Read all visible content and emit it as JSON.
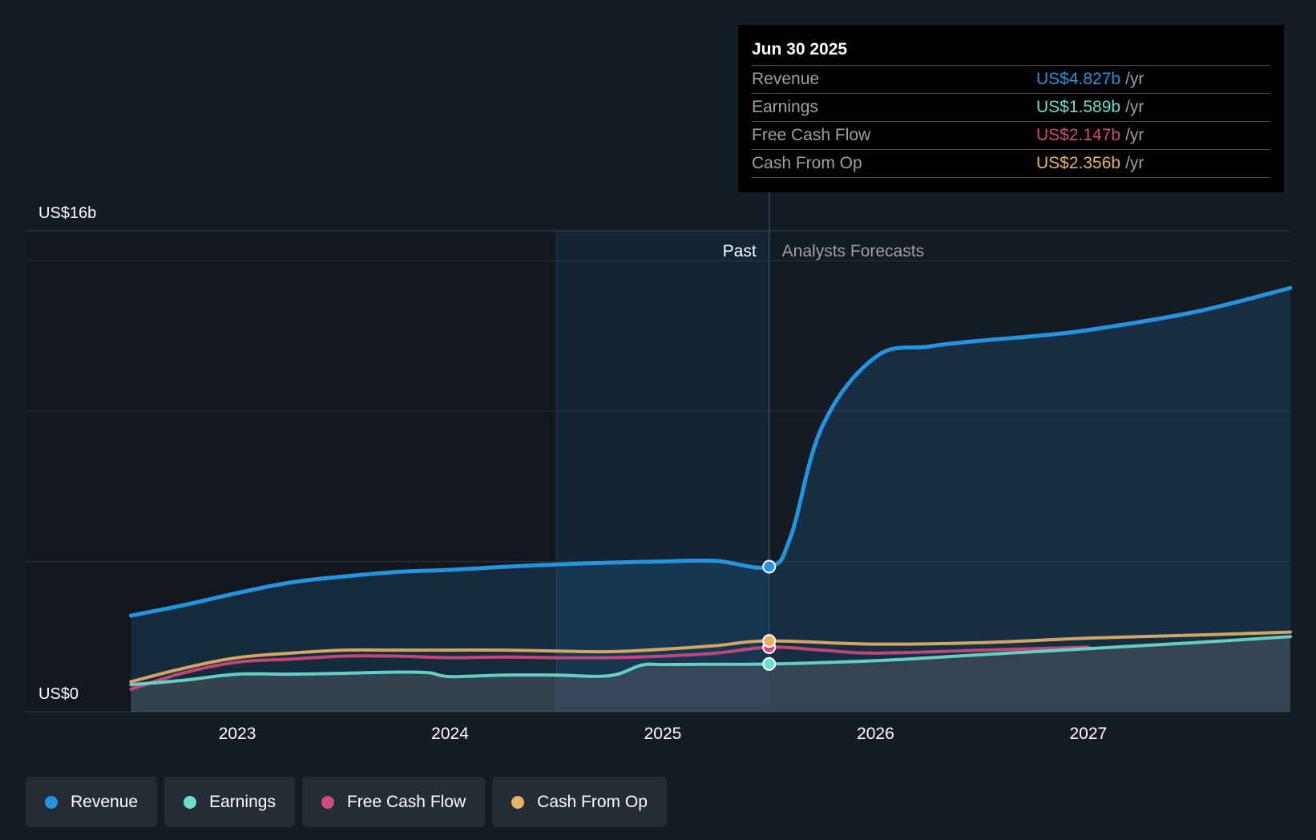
{
  "colors": {
    "background": "#151b24",
    "revenue": "#2394df",
    "earnings": "#6ae0cd",
    "free_cash_flow": "#d1497f",
    "cash_from_op": "#e8b266",
    "past_highlight": "#173248"
  },
  "tooltip": {
    "date": "Jun 30 2025",
    "rows": [
      {
        "label": "Revenue",
        "value": "US$4.827b",
        "unit": "/yr",
        "color": "#2394df"
      },
      {
        "label": "Earnings",
        "value": "US$1.589b",
        "unit": "/yr",
        "color": "#6ae0cd"
      },
      {
        "label": "Free Cash Flow",
        "value": "US$2.147b",
        "unit": "/yr",
        "color": "#d1497f"
      },
      {
        "label": "Cash From Op",
        "value": "US$2.356b",
        "unit": "/yr",
        "color": "#e8b266"
      }
    ]
  },
  "labels": {
    "past": "Past",
    "forecast": "Analysts Forecasts"
  },
  "legend": [
    {
      "label": "Revenue",
      "color": "#2394df"
    },
    {
      "label": "Earnings",
      "color": "#6ae0cd"
    },
    {
      "label": "Free Cash Flow",
      "color": "#d1497f"
    },
    {
      "label": "Cash From Op",
      "color": "#e8b266"
    }
  ],
  "chart_data": {
    "type": "line",
    "x_range": [
      2022.25,
      2027.95
    ],
    "ylim": [
      0,
      16
    ],
    "y_tick_labels": [
      {
        "value": 16,
        "label": "US$16b"
      },
      {
        "value": 0,
        "label": "US$0"
      }
    ],
    "x_ticks": [
      2023,
      2024,
      2025,
      2026,
      2027
    ],
    "x_tick_labels": [
      "2023",
      "2024",
      "2025",
      "2026",
      "2027"
    ],
    "gridlines_y": [
      15,
      10,
      5
    ],
    "grid": true,
    "legend_position": "bottom-left",
    "past_end": 2025.5,
    "highlight_start": 2024.5,
    "hover_x": 2025.5,
    "series": [
      {
        "name": "Revenue",
        "key": "revenue",
        "x": [
          2022.5,
          2022.75,
          2023.0,
          2023.25,
          2023.5,
          2023.75,
          2024.0,
          2024.25,
          2024.5,
          2024.75,
          2025.0,
          2025.25,
          2025.5,
          2025.6,
          2025.75,
          2026.0,
          2026.25,
          2026.5,
          2026.75,
          2027.0,
          2027.5,
          2027.95
        ],
        "y": [
          3.2,
          3.55,
          3.95,
          4.3,
          4.5,
          4.65,
          4.72,
          4.82,
          4.9,
          4.96,
          5.0,
          5.02,
          4.827,
          5.8,
          9.5,
          11.8,
          12.15,
          12.35,
          12.5,
          12.7,
          13.3,
          14.1
        ]
      },
      {
        "name": "Earnings",
        "key": "earnings",
        "x": [
          2022.5,
          2022.75,
          2023.0,
          2023.25,
          2023.5,
          2023.75,
          2023.9,
          2024.0,
          2024.25,
          2024.5,
          2024.75,
          2024.9,
          2025.0,
          2025.25,
          2025.5,
          2026.0,
          2026.5,
          2027.0,
          2027.5,
          2027.95
        ],
        "y": [
          0.9,
          1.05,
          1.25,
          1.25,
          1.28,
          1.32,
          1.3,
          1.17,
          1.22,
          1.22,
          1.2,
          1.55,
          1.57,
          1.58,
          1.589,
          1.7,
          1.9,
          2.1,
          2.3,
          2.5
        ]
      },
      {
        "name": "Free Cash Flow",
        "key": "free_cash_flow",
        "x": [
          2022.5,
          2022.75,
          2023.0,
          2023.25,
          2023.5,
          2023.75,
          2024.0,
          2024.25,
          2024.5,
          2024.75,
          2025.0,
          2025.25,
          2025.5,
          2025.75,
          2026.0,
          2026.5,
          2027.0
        ],
        "y": [
          0.75,
          1.3,
          1.65,
          1.75,
          1.85,
          1.85,
          1.8,
          1.82,
          1.8,
          1.8,
          1.85,
          1.95,
          2.147,
          2.05,
          1.95,
          2.05,
          2.15
        ]
      },
      {
        "name": "Cash From Op",
        "key": "cash_from_op",
        "x": [
          2022.5,
          2022.75,
          2023.0,
          2023.25,
          2023.5,
          2023.75,
          2024.0,
          2024.25,
          2024.5,
          2024.75,
          2025.0,
          2025.25,
          2025.5,
          2026.0,
          2026.5,
          2027.0,
          2027.5,
          2027.95
        ],
        "y": [
          1.0,
          1.45,
          1.8,
          1.95,
          2.05,
          2.05,
          2.05,
          2.05,
          2.02,
          2.0,
          2.08,
          2.2,
          2.356,
          2.25,
          2.3,
          2.45,
          2.55,
          2.65
        ]
      }
    ]
  }
}
